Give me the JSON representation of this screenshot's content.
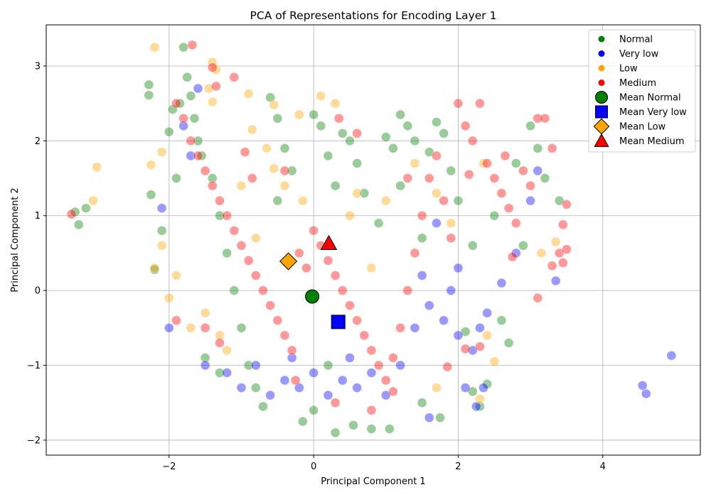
{
  "chart_data": {
    "type": "scatter",
    "title": "PCA of Representations for Encoding Layer 1",
    "xlabel": "Principal Component 1",
    "ylabel": "Principal Component 2",
    "xlim": [
      -3.7,
      5.35
    ],
    "ylim": [
      -2.2,
      3.55
    ],
    "xticks": [
      -2,
      0,
      2,
      4
    ],
    "yticks": [
      -2,
      -1,
      0,
      1,
      2,
      3
    ],
    "grid": true,
    "legend_position": "top-right",
    "series": [
      {
        "name": "Normal",
        "color": "#008000",
        "marker": "circle",
        "points": [
          [
            -3.3,
            1.05
          ],
          [
            -3.25,
            0.88
          ],
          [
            -3.15,
            1.1
          ],
          [
            -2.28,
            2.75
          ],
          [
            -2.28,
            2.61
          ],
          [
            -2.25,
            1.28
          ],
          [
            -2.2,
            0.28
          ],
          [
            -2.0,
            2.12
          ],
          [
            -1.95,
            2.42
          ],
          [
            -1.85,
            2.5
          ],
          [
            -1.8,
            3.25
          ],
          [
            -1.75,
            2.85
          ],
          [
            -1.7,
            2.6
          ],
          [
            -1.65,
            2.3
          ],
          [
            -1.6,
            2.0
          ],
          [
            -1.55,
            1.8
          ],
          [
            -1.4,
            1.5
          ],
          [
            -1.3,
            1.0
          ],
          [
            -1.2,
            0.5
          ],
          [
            -1.1,
            0.0
          ],
          [
            -1.0,
            -0.5
          ],
          [
            -0.9,
            -1.0
          ],
          [
            -0.8,
            -1.3
          ],
          [
            -0.7,
            -1.55
          ],
          [
            -0.6,
            2.58
          ],
          [
            -0.5,
            2.3
          ],
          [
            -0.4,
            1.9
          ],
          [
            -0.3,
            1.6
          ],
          [
            -0.15,
            -1.75
          ],
          [
            0.0,
            2.35
          ],
          [
            0.0,
            -1.6
          ],
          [
            0.1,
            2.2
          ],
          [
            0.2,
            1.8
          ],
          [
            0.3,
            1.4
          ],
          [
            0.4,
            2.1
          ],
          [
            0.5,
            2.0
          ],
          [
            0.6,
            1.7
          ],
          [
            0.7,
            1.3
          ],
          [
            0.8,
            -1.85
          ],
          [
            1.0,
            2.05
          ],
          [
            1.1,
            1.9
          ],
          [
            1.2,
            2.35
          ],
          [
            1.3,
            2.2
          ],
          [
            1.4,
            2.0
          ],
          [
            1.6,
            1.85
          ],
          [
            1.7,
            2.25
          ],
          [
            1.8,
            2.1
          ],
          [
            1.9,
            1.6
          ],
          [
            2.0,
            1.2
          ],
          [
            2.1,
            -0.55
          ],
          [
            2.2,
            -1.35
          ],
          [
            2.3,
            -1.55
          ],
          [
            2.4,
            -1.25
          ],
          [
            2.5,
            1.0
          ],
          [
            2.6,
            -0.4
          ],
          [
            2.8,
            1.7
          ],
          [
            3.0,
            2.2
          ],
          [
            3.1,
            1.9
          ],
          [
            3.2,
            1.5
          ],
          [
            3.4,
            1.2
          ],
          [
            0.3,
            -1.9
          ],
          [
            0.55,
            -1.8
          ],
          [
            1.05,
            -1.85
          ],
          [
            1.5,
            -1.5
          ],
          [
            1.75,
            -1.7
          ],
          [
            -0.5,
            1.2
          ],
          [
            0.9,
            0.9
          ],
          [
            1.5,
            0.7
          ],
          [
            2.2,
            0.6
          ],
          [
            -1.9,
            1.5
          ],
          [
            -2.1,
            0.8
          ],
          [
            -1.5,
            -0.9
          ],
          [
            -1.3,
            -1.1
          ],
          [
            0.2,
            -1.0
          ],
          [
            2.7,
            -0.7
          ],
          [
            2.9,
            0.6
          ],
          [
            1.2,
            1.4
          ]
        ]
      },
      {
        "name": "Very low",
        "color": "#0000ff",
        "marker": "circle",
        "points": [
          [
            -2.0,
            -0.5
          ],
          [
            -2.1,
            1.1
          ],
          [
            -1.5,
            -1.0
          ],
          [
            -1.2,
            -1.1
          ],
          [
            -1.0,
            -1.3
          ],
          [
            -0.8,
            -1.0
          ],
          [
            -0.6,
            -1.4
          ],
          [
            -0.4,
            -1.2
          ],
          [
            -0.2,
            -1.3
          ],
          [
            0.0,
            -1.1
          ],
          [
            0.2,
            -1.4
          ],
          [
            0.4,
            -1.2
          ],
          [
            0.6,
            -1.3
          ],
          [
            0.8,
            -1.1
          ],
          [
            1.0,
            -1.4
          ],
          [
            1.2,
            -1.0
          ],
          [
            1.4,
            -0.5
          ],
          [
            1.6,
            -0.2
          ],
          [
            1.8,
            -0.4
          ],
          [
            2.0,
            -0.6
          ],
          [
            2.2,
            -0.8
          ],
          [
            2.4,
            -0.3
          ],
          [
            2.6,
            0.1
          ],
          [
            2.8,
            0.5
          ],
          [
            3.0,
            1.2
          ],
          [
            3.1,
            1.6
          ],
          [
            1.6,
            -1.7
          ],
          [
            2.1,
            -1.3
          ],
          [
            2.25,
            -1.55
          ],
          [
            2.35,
            -1.3
          ],
          [
            2.3,
            -0.5
          ],
          [
            3.35,
            0.13
          ],
          [
            4.55,
            -1.27
          ],
          [
            4.6,
            -1.38
          ],
          [
            4.95,
            -0.87
          ],
          [
            1.5,
            0.2
          ],
          [
            1.9,
            0.0
          ],
          [
            0.5,
            -0.9
          ],
          [
            -0.3,
            -0.9
          ],
          [
            -1.6,
            2.7
          ],
          [
            -1.8,
            2.2
          ],
          [
            -1.7,
            1.8
          ],
          [
            1.7,
            0.9
          ],
          [
            2.0,
            0.3
          ]
        ]
      },
      {
        "name": "Low",
        "color": "#ffa500",
        "marker": "circle",
        "points": [
          [
            -2.2,
            3.25
          ],
          [
            -3.0,
            1.65
          ],
          [
            -3.05,
            1.2
          ],
          [
            -2.25,
            1.68
          ],
          [
            -2.1,
            1.85
          ],
          [
            -1.4,
            3.05
          ],
          [
            -1.35,
            2.95
          ],
          [
            -1.45,
            2.7
          ],
          [
            -1.4,
            2.52
          ],
          [
            -0.9,
            2.63
          ],
          [
            -0.85,
            2.15
          ],
          [
            -0.55,
            2.48
          ],
          [
            -0.65,
            1.9
          ],
          [
            -0.55,
            1.63
          ],
          [
            -0.4,
            1.4
          ],
          [
            -0.2,
            2.35
          ],
          [
            0.1,
            2.6
          ],
          [
            0.3,
            2.5
          ],
          [
            -0.15,
            1.2
          ],
          [
            -2.2,
            0.3
          ],
          [
            -2.1,
            0.6
          ],
          [
            -1.9,
            0.2
          ],
          [
            -2.0,
            -0.1
          ],
          [
            -1.7,
            -0.5
          ],
          [
            -1.5,
            -0.3
          ],
          [
            -1.3,
            -0.6
          ],
          [
            -1.2,
            -0.8
          ],
          [
            0.5,
            1.0
          ],
          [
            0.6,
            1.3
          ],
          [
            1.0,
            1.2
          ],
          [
            1.4,
            1.7
          ],
          [
            1.7,
            1.3
          ],
          [
            1.9,
            0.9
          ],
          [
            2.3,
            -1.45
          ],
          [
            2.4,
            -0.6
          ],
          [
            2.5,
            -0.95
          ],
          [
            3.15,
            0.5
          ],
          [
            3.35,
            0.65
          ],
          [
            1.7,
            -1.3
          ],
          [
            2.35,
            1.7
          ],
          [
            0.8,
            0.3
          ],
          [
            -0.8,
            0.7
          ],
          [
            -1.0,
            1.4
          ]
        ]
      },
      {
        "name": "Medium",
        "color": "#ff0000",
        "marker": "circle",
        "points": [
          [
            -1.68,
            3.28
          ],
          [
            -3.35,
            1.02
          ],
          [
            -1.4,
            2.98
          ],
          [
            -1.35,
            2.73
          ],
          [
            -1.1,
            2.85
          ],
          [
            -1.9,
            2.5
          ],
          [
            -1.8,
            2.3
          ],
          [
            -1.7,
            2.0
          ],
          [
            -1.6,
            1.8
          ],
          [
            -1.5,
            1.6
          ],
          [
            -1.4,
            1.4
          ],
          [
            -1.3,
            1.2
          ],
          [
            -1.2,
            1.0
          ],
          [
            -1.1,
            0.8
          ],
          [
            -1.0,
            0.6
          ],
          [
            -0.9,
            0.4
          ],
          [
            -0.8,
            0.2
          ],
          [
            -0.7,
            0.0
          ],
          [
            -0.6,
            -0.2
          ],
          [
            -0.5,
            -0.4
          ],
          [
            -0.4,
            -0.6
          ],
          [
            -0.3,
            -0.8
          ],
          [
            -0.2,
            0.5
          ],
          [
            -0.1,
            0.3
          ],
          [
            0.0,
            0.8
          ],
          [
            0.1,
            0.6
          ],
          [
            0.2,
            0.4
          ],
          [
            0.3,
            0.2
          ],
          [
            0.4,
            0.0
          ],
          [
            0.5,
            -0.2
          ],
          [
            0.6,
            -0.4
          ],
          [
            0.7,
            -0.6
          ],
          [
            0.8,
            -0.8
          ],
          [
            0.9,
            -1.0
          ],
          [
            1.0,
            -1.2
          ],
          [
            1.1,
            -0.9
          ],
          [
            1.2,
            -0.5
          ],
          [
            1.3,
            0.0
          ],
          [
            1.4,
            0.5
          ],
          [
            1.5,
            1.0
          ],
          [
            1.6,
            1.5
          ],
          [
            1.7,
            1.8
          ],
          [
            1.8,
            1.2
          ],
          [
            1.9,
            0.7
          ],
          [
            2.0,
            2.5
          ],
          [
            2.1,
            2.2
          ],
          [
            2.2,
            2.0
          ],
          [
            2.3,
            2.5
          ],
          [
            2.4,
            1.7
          ],
          [
            2.5,
            1.5
          ],
          [
            2.6,
            1.3
          ],
          [
            2.7,
            1.1
          ],
          [
            2.8,
            0.9
          ],
          [
            2.9,
            1.6
          ],
          [
            3.0,
            1.4
          ],
          [
            3.1,
            2.3
          ],
          [
            3.2,
            2.3
          ],
          [
            3.3,
            1.9
          ],
          [
            3.4,
            0.5
          ],
          [
            3.45,
            0.88
          ],
          [
            3.5,
            1.15
          ],
          [
            3.5,
            0.55
          ],
          [
            3.45,
            0.37
          ],
          [
            3.3,
            0.33
          ],
          [
            3.1,
            -0.1
          ],
          [
            2.3,
            -0.75
          ],
          [
            2.1,
            -0.78
          ],
          [
            1.85,
            -1.02
          ],
          [
            1.1,
            -1.35
          ],
          [
            0.8,
            -1.6
          ],
          [
            0.3,
            -1.5
          ],
          [
            -0.25,
            -1.2
          ],
          [
            -1.3,
            -0.7
          ],
          [
            -1.5,
            -0.5
          ],
          [
            -1.9,
            -0.4
          ],
          [
            -0.95,
            1.85
          ],
          [
            -0.85,
            1.5
          ],
          [
            -0.4,
            1.6
          ],
          [
            0.35,
            2.3
          ],
          [
            0.6,
            2.1
          ],
          [
            1.3,
            1.5
          ],
          [
            2.15,
            1.55
          ],
          [
            2.65,
            1.8
          ],
          [
            2.75,
            0.45
          ]
        ]
      }
    ],
    "means": [
      {
        "name": "Mean Normal",
        "color": "#008000",
        "marker": "circle",
        "x": -0.02,
        "y": -0.08
      },
      {
        "name": "Mean Very low",
        "color": "#0000ff",
        "marker": "square",
        "x": 0.34,
        "y": -0.42
      },
      {
        "name": "Mean Low",
        "color": "#ffa500",
        "marker": "diamond",
        "x": -0.35,
        "y": 0.39
      },
      {
        "name": "Mean Medium",
        "color": "#ff0000",
        "marker": "triangle",
        "x": 0.21,
        "y": 0.63
      }
    ]
  }
}
